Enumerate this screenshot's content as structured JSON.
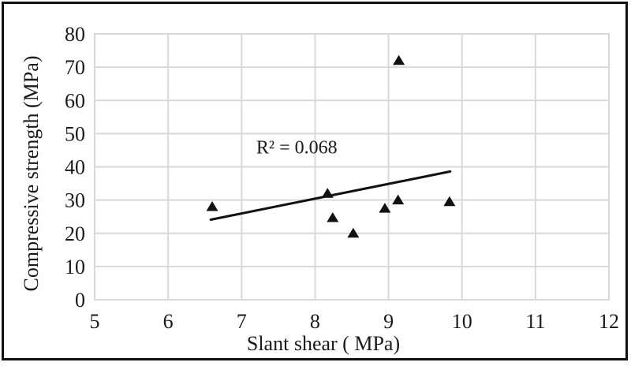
{
  "figure": {
    "background": "#ffffff",
    "frame_color": "#111111"
  },
  "chart_data": {
    "type": "scatter",
    "title": "",
    "xlabel": "Slant shear ( MPa)",
    "ylabel": "Compressive strength (MPa)",
    "xlim": [
      5,
      12
    ],
    "ylim": [
      0,
      80
    ],
    "xticks": [
      5,
      6,
      7,
      8,
      9,
      10,
      11,
      12
    ],
    "yticks": [
      0,
      10,
      20,
      30,
      40,
      50,
      60,
      70,
      80
    ],
    "grid": true,
    "legend_position": "none",
    "marker": "filled-triangle",
    "marker_color": "#111111",
    "gridline_color": "#d9d9d9",
    "text_color": "#1a1a1a",
    "points": [
      {
        "x": 6.6,
        "y": 28
      },
      {
        "x": 8.17,
        "y": 32
      },
      {
        "x": 8.24,
        "y": 24.7
      },
      {
        "x": 8.52,
        "y": 20
      },
      {
        "x": 8.95,
        "y": 27.5
      },
      {
        "x": 9.13,
        "y": 30
      },
      {
        "x": 9.14,
        "y": 72
      },
      {
        "x": 9.83,
        "y": 29.5
      }
    ],
    "trendline": {
      "x1": 6.58,
      "y1": 24.1,
      "x2": 9.84,
      "y2": 38.6,
      "color": "#111111"
    },
    "annotation": {
      "text": "R² = 0.068",
      "x": 7.2,
      "y": 44
    }
  }
}
